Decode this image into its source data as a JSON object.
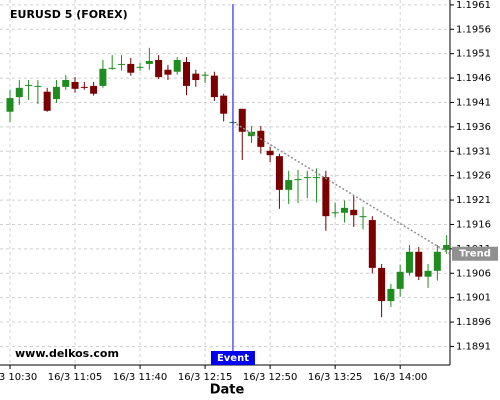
{
  "chart_data": {
    "type": "candlestick",
    "title": "EURUSD 5 (FOREX)",
    "watermark": "www.delkos.com",
    "x_label": "Date",
    "categories": [
      "16/3 10:30",
      null,
      null,
      null,
      null,
      null,
      null,
      "16/3 11:05",
      null,
      null,
      null,
      null,
      null,
      null,
      "16/3 11:40",
      null,
      null,
      null,
      null,
      null,
      null,
      "16/3 12:15",
      null,
      null,
      null,
      null,
      null,
      null,
      "16/3 12:50",
      null,
      null,
      null,
      null,
      null,
      null,
      "16/3 13:25",
      null,
      null,
      null,
      null,
      null,
      null,
      "16/3 14:00",
      null,
      null,
      null,
      null,
      null
    ],
    "open": [
      1.19391,
      1.19421,
      1.19444,
      1.19444,
      1.19432,
      1.19417,
      1.19442,
      1.19452,
      1.19442,
      1.19444,
      1.19444,
      1.19481,
      1.19489,
      1.19489,
      1.19483,
      1.19489,
      1.19497,
      1.19477,
      1.19473,
      1.19493,
      1.19469,
      1.19467,
      1.19465,
      1.19424,
      1.1937,
      1.19397,
      1.19341,
      1.19352,
      1.19311,
      1.193,
      1.19231,
      1.19253,
      1.19257,
      1.19257,
      1.19257,
      1.19185,
      1.19184,
      1.1919,
      1.19177,
      1.19169,
      1.19071,
      1.19003,
      1.19028,
      1.19061,
      1.19104,
      1.19053,
      1.19065,
      1.19108
    ],
    "high": [
      1.19436,
      1.19456,
      1.19456,
      1.19456,
      1.1944,
      1.19456,
      1.19466,
      1.19462,
      1.19452,
      1.19452,
      1.19497,
      1.19507,
      1.19507,
      1.19501,
      1.19491,
      1.19522,
      1.19507,
      1.19487,
      1.19503,
      1.19503,
      1.19477,
      1.19473,
      1.19473,
      1.19428,
      1.19375,
      1.19397,
      1.19362,
      1.19362,
      1.19319,
      1.19305,
      1.1927,
      1.19272,
      1.1927,
      1.19275,
      1.1927,
      1.19205,
      1.19209,
      1.19218,
      1.19196,
      1.19177,
      1.19079,
      1.19038,
      1.19077,
      1.19118,
      1.19114,
      1.19079,
      1.19118,
      1.19138
    ],
    "low": [
      1.1937,
      1.19405,
      1.19415,
      1.19407,
      1.19391,
      1.19409,
      1.19436,
      1.1943,
      1.19436,
      1.19424,
      1.1944,
      1.19477,
      1.19475,
      1.19465,
      1.19475,
      1.19477,
      1.19458,
      1.19456,
      1.19467,
      1.19425,
      1.19442,
      1.1945,
      1.19413,
      1.19371,
      1.19365,
      1.19292,
      1.19327,
      1.19305,
      1.19288,
      1.19192,
      1.19202,
      1.19204,
      1.19214,
      1.19205,
      1.19147,
      1.19175,
      1.19164,
      1.19155,
      1.1915,
      1.1906,
      1.1897,
      1.18991,
      1.19012,
      1.19055,
      1.19046,
      1.1903,
      1.19045,
      1.191
    ],
    "close": [
      1.19419,
      1.1944,
      1.19446,
      1.19444,
      1.19393,
      1.19442,
      1.19456,
      1.19438,
      1.1944,
      1.19428,
      1.19479,
      1.19481,
      1.19489,
      1.19471,
      1.19483,
      1.19495,
      1.19462,
      1.19467,
      1.19497,
      1.19444,
      1.19456,
      1.19467,
      1.19421,
      1.19387,
      1.1937,
      1.1935,
      1.1935,
      1.19319,
      1.19302,
      1.19231,
      1.19251,
      1.19253,
      1.19257,
      1.19257,
      1.19177,
      1.19185,
      1.19194,
      1.19179,
      1.19177,
      1.19071,
      1.19003,
      1.19028,
      1.19063,
      1.19104,
      1.19053,
      1.19065,
      1.19104,
      1.19118
    ],
    "up_color": "#1e8c1e",
    "down_color": "#7a0000",
    "ylim": [
      1.18872,
      1.1962
    ],
    "yticks": [
      1.1891,
      1.1896,
      1.1901,
      1.1906,
      1.1911,
      1.1916,
      1.1921,
      1.1926,
      1.1931,
      1.1936,
      1.1941,
      1.1946,
      1.1951,
      1.1956,
      1.1961
    ],
    "grid": true,
    "event": {
      "label": "Event",
      "index": 24,
      "color": "#0000ee"
    },
    "trend": {
      "label": "Trend",
      "start_index": 24,
      "end_index": 47,
      "values": [
        1.1937,
        1.191
      ],
      "color": "#909090"
    }
  }
}
